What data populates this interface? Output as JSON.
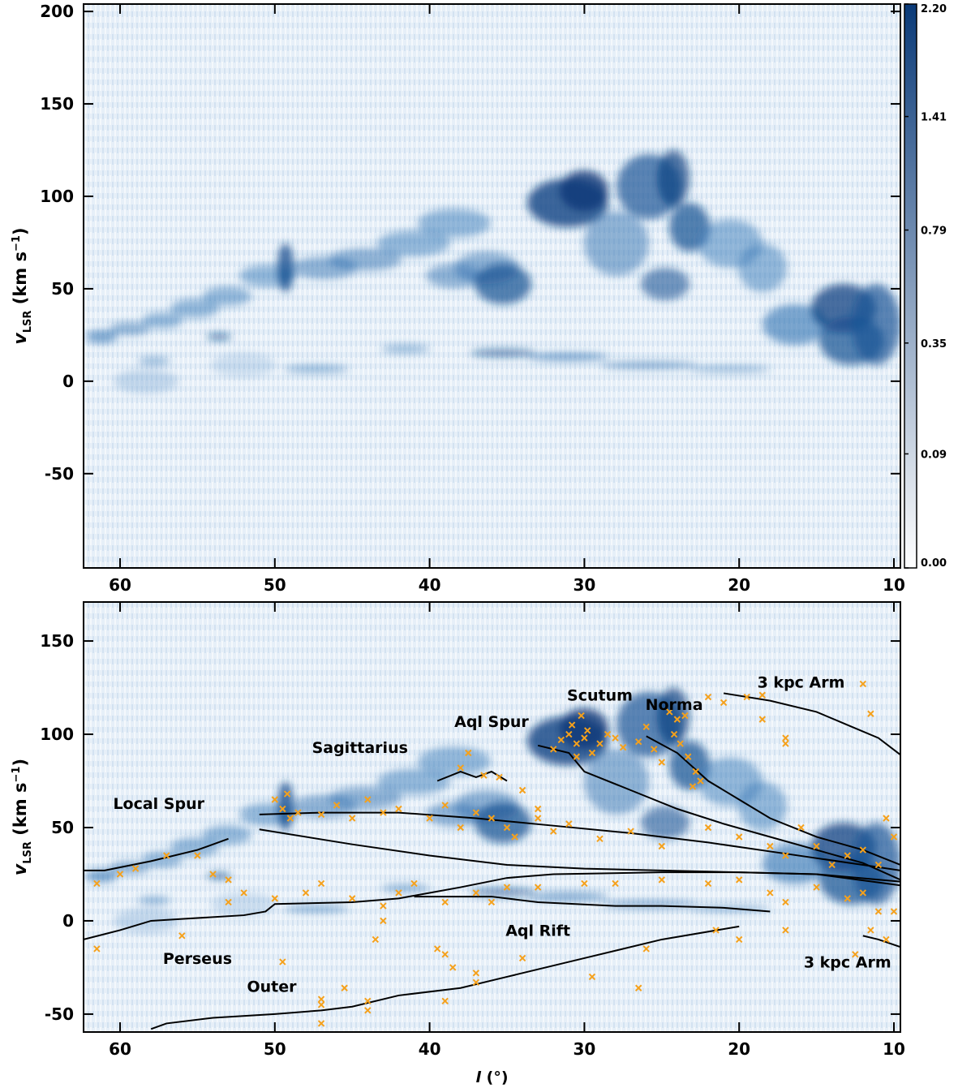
{
  "chart_data": [
    {
      "type": "heatmap",
      "xlim": [
        62.36,
        9.58
      ],
      "ylim": [
        -101,
        204
      ],
      "xticks": [
        60,
        50,
        40,
        30,
        20,
        10
      ],
      "yticks": [
        -50,
        0,
        50,
        100,
        150,
        200
      ],
      "ylabel": [
        "v",
        "LSR",
        " (km s",
        "−1",
        ")"
      ],
      "colorbar": {
        "clim": [
          0,
          2.2
        ],
        "scale": "sqrt",
        "cmap": [
          "#ffffff",
          "#0a3a78"
        ],
        "ticks": [
          {
            "value": 0,
            "label": "0.00"
          },
          0.09,
          0.35,
          0.79,
          1.41,
          {
            "value": 2.2,
            "label": "2.20"
          }
        ]
      }
    },
    {
      "type": "line",
      "xlim": [
        62.36,
        9.58
      ],
      "ylim": [
        -59.6,
        170.9
      ],
      "xticks": [
        60,
        50,
        40,
        30,
        20,
        10
      ],
      "yticks": [
        -50,
        0,
        50,
        100,
        150
      ],
      "xlabel": [
        "l",
        " (°)"
      ],
      "ylabel": [
        "v",
        "LSR",
        " (km s",
        "−1",
        ")"
      ],
      "series": [
        {
          "color": "#000000",
          "x": [
            62.36,
            60,
            58,
            56,
            52,
            50.6,
            50,
            45,
            42,
            40,
            38,
            35,
            32,
            25,
            20,
            15,
            9.58
          ],
          "values": [
            -10,
            -5,
            0,
            1,
            3,
            5,
            9,
            10,
            12,
            15,
            18,
            23,
            25,
            26,
            26,
            25,
            21
          ]
        },
        {
          "color": "#000000",
          "x": [
            62.36,
            61,
            58,
            55,
            53
          ],
          "values": [
            27,
            27,
            32,
            38,
            44
          ]
        },
        {
          "color": "#000000",
          "x": [
            51,
            47,
            42,
            37,
            32,
            27,
            22,
            17,
            12,
            9.58
          ],
          "values": [
            57,
            58,
            58,
            55,
            51,
            47,
            42,
            36,
            30,
            27
          ]
        },
        {
          "color": "#000000",
          "x": [
            51,
            45,
            40,
            35,
            30,
            25,
            15,
            9.58
          ],
          "values": [
            49,
            41,
            35,
            30,
            28,
            27,
            25,
            19
          ]
        },
        {
          "color": "#000000",
          "x": [
            41,
            36,
            33,
            28,
            25,
            21,
            18
          ],
          "values": [
            13,
            13,
            10,
            8,
            8,
            7,
            5
          ]
        },
        {
          "color": "#000000",
          "x": [
            39.5,
            38,
            37,
            36,
            35
          ],
          "values": [
            75,
            80,
            77,
            80,
            75
          ]
        },
        {
          "color": "#000000",
          "x": [
            33,
            31,
            30,
            27,
            24,
            21,
            18,
            15,
            12,
            9.58
          ],
          "values": [
            94,
            90,
            80,
            70,
            60,
            52,
            45,
            38,
            31,
            22
          ]
        },
        {
          "color": "#000000",
          "x": [
            26,
            24,
            22,
            20,
            18,
            15,
            12,
            9.58
          ],
          "values": [
            99,
            90,
            75,
            65,
            55,
            45,
            38,
            30
          ]
        },
        {
          "color": "#000000",
          "x": [
            21,
            18,
            15,
            13,
            11,
            9.58
          ],
          "values": [
            122,
            118,
            112,
            105,
            98,
            89
          ]
        },
        {
          "color": "#000000",
          "x": [
            12,
            11,
            9.58
          ],
          "values": [
            -8,
            -10,
            -14
          ]
        },
        {
          "color": "#000000",
          "x": [
            58,
            57,
            54,
            50,
            47,
            45,
            42,
            38,
            35,
            30,
            25,
            20
          ],
          "values": [
            -58,
            -55,
            -52,
            -50,
            -48,
            -46,
            -40,
            -36,
            -30,
            -20,
            -10,
            -3
          ]
        }
      ],
      "points": {
        "color": "#f5a11c",
        "x": [
          31,
          30.8,
          30.5,
          30.2,
          30,
          29.8,
          31.5,
          32,
          30.5,
          29.5,
          29,
          28.5,
          28,
          27.5,
          26.5,
          25.5,
          25,
          24.5,
          24,
          23.5,
          24.2,
          23.8,
          23.3,
          22.8,
          22.5,
          23,
          26,
          22,
          21,
          19.5,
          18.5,
          50,
          49.5,
          49,
          49.2,
          48.5,
          47,
          46,
          45,
          44,
          43,
          42,
          40,
          39,
          38,
          37,
          36,
          35,
          34.5,
          33,
          32,
          31,
          29,
          27,
          25,
          22,
          20,
          18,
          17,
          16,
          15,
          14,
          13,
          12,
          11,
          10.5,
          10,
          38,
          36.5,
          35.5,
          37.5,
          34,
          33,
          61.5,
          60,
          59,
          57,
          55,
          54,
          53,
          53,
          52,
          50,
          48,
          47,
          45,
          43,
          43,
          42,
          41,
          39,
          37,
          36,
          35,
          33,
          30,
          28,
          25,
          22,
          20,
          18,
          17,
          15,
          13,
          12,
          11,
          10,
          11.5,
          10.5,
          61.5,
          56,
          49.5,
          47,
          47,
          47,
          45.5,
          44,
          44,
          43.5,
          39.5,
          39,
          38.5,
          39,
          37,
          37,
          34,
          29.5,
          26.5,
          26,
          21.5,
          20,
          17,
          12.5,
          12,
          11.5,
          17,
          17,
          18.5
        ],
        "values": [
          100,
          105,
          95,
          110,
          98,
          102,
          97,
          92,
          88,
          90,
          95,
          100,
          98,
          93,
          96,
          92,
          85,
          112,
          108,
          110,
          100,
          95,
          88,
          80,
          75,
          72,
          104,
          120,
          117,
          120,
          121,
          65,
          60,
          55,
          68,
          58,
          57,
          62,
          55,
          65,
          58,
          60,
          55,
          62,
          50,
          58,
          55,
          50,
          45,
          55,
          48,
          52,
          44,
          48,
          40,
          50,
          45,
          40,
          35,
          50,
          40,
          30,
          35,
          38,
          30,
          55,
          45,
          82,
          78,
          77,
          90,
          70,
          60,
          20,
          25,
          28,
          35,
          35,
          25,
          22,
          10,
          15,
          12,
          15,
          20,
          12,
          8,
          0,
          15,
          20,
          10,
          15,
          10,
          18,
          18,
          20,
          20,
          22,
          20,
          22,
          15,
          10,
          18,
          12,
          15,
          5,
          5,
          -5,
          -10,
          -15,
          -8,
          -22,
          -42,
          -45,
          -55,
          -36,
          -43,
          -48,
          -10,
          -15,
          -18,
          -25,
          -43,
          -28,
          -33,
          -20,
          -30,
          -36,
          -15,
          -5,
          -10,
          -5,
          -18,
          127,
          111,
          95,
          98,
          108
        ]
      },
      "annotations": [
        "Local Spur",
        "Sagittarius",
        "Aql Spur",
        "Scutum",
        "Norma",
        "3 kpc Arm",
        "Aql Rift",
        "Perseus",
        "Outer",
        "3 kpc Arm"
      ]
    }
  ]
}
